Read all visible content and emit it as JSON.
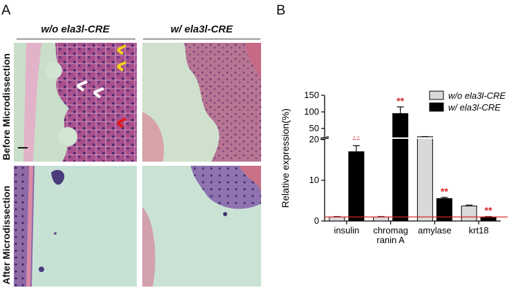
{
  "panel_a_label": "A",
  "panel_b_label": "B",
  "columns": [
    "w/o ela3l-CRE",
    "w/ ela3l-CRE"
  ],
  "rows": [
    "Before Microdissection",
    "After Microdissection"
  ],
  "colors": {
    "bar_without": "#d9d9d9",
    "bar_with": "#000000",
    "significance": "#d62728",
    "baseline": "#d62728",
    "tissue_pink": "#b8609a",
    "tissue_purple": "#6a3f8f",
    "background_green": "#cfe3cf"
  },
  "chart_data": {
    "type": "bar",
    "ylabel": "Relative expression(%)",
    "categories": [
      "insulin",
      "chromag\nranin A",
      "amylase",
      "krt18"
    ],
    "category_lines": [
      [
        "insulin"
      ],
      [
        "chromag",
        "ranin A"
      ],
      [
        "amylase"
      ],
      [
        "krt18"
      ]
    ],
    "axis_lower": {
      "range": [
        0,
        20
      ],
      "ticks": [
        "0",
        "10",
        "20"
      ]
    },
    "axis_upper": {
      "range": [
        25,
        150
      ],
      "ticks": [
        "50",
        "100",
        "150"
      ]
    },
    "series": [
      {
        "name": "w/o ela3l-CRE",
        "values": [
          1,
          1,
          25,
          3.7
        ],
        "errors": [
          0.1,
          0.1,
          0.6,
          0.2
        ]
      },
      {
        "name": "w/ ela3l-CRE",
        "values": [
          17,
          95,
          5.5,
          1.0
        ],
        "errors": [
          1.5,
          20,
          0.3,
          0.1
        ]
      }
    ],
    "significance": [
      "**",
      "**",
      "**",
      "**"
    ],
    "baseline": 1,
    "legend": "top-right"
  }
}
